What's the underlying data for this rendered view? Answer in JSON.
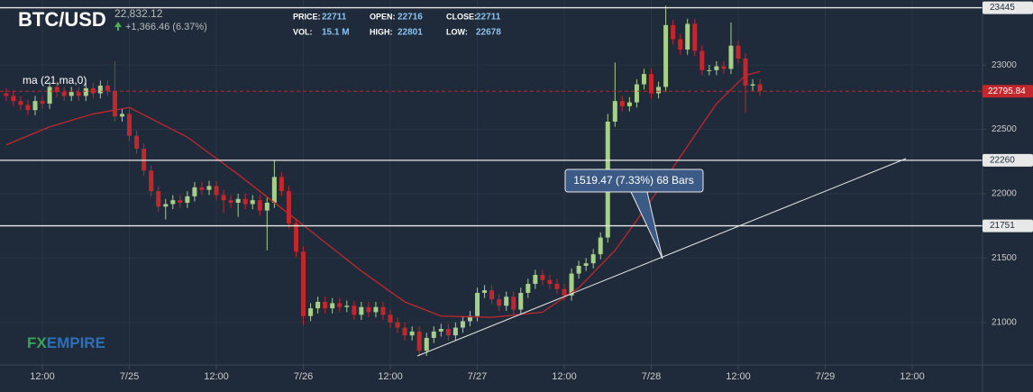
{
  "header": {
    "symbol": "BTC/USD",
    "price": "22,832.12",
    "change": "+1,366.46 (6.37%)",
    "stats": [
      {
        "label": "PRICE:",
        "value": "22711"
      },
      {
        "label": "OPEN:",
        "value": "22716"
      },
      {
        "label": "CLOSE:",
        "value": "22711"
      },
      {
        "label": "VOL:",
        "value": "15.1 M"
      },
      {
        "label": "HIGH:",
        "value": "22801"
      },
      {
        "label": "LOW:",
        "value": "22678"
      }
    ],
    "logo": {
      "fx": "FX",
      "empire": "EMPIRE"
    }
  },
  "chart_data": {
    "type": "candlestick",
    "up_color": "#a6cf8a",
    "down_color": "#c1272d",
    "grid": true,
    "annotation": "1519.47 (7.33%) 68 Bars",
    "xlim": [
      -5.85,
      129.7
    ],
    "ylim": [
      20670,
      23505
    ],
    "xticks": [
      {
        "value": 0,
        "label": "12:00"
      },
      {
        "value": 12,
        "label": "7/25"
      },
      {
        "value": 24,
        "label": "12:00"
      },
      {
        "value": 36,
        "label": "7/26"
      },
      {
        "value": 48,
        "label": "12:00"
      },
      {
        "value": 60,
        "label": "7/27"
      },
      {
        "value": 72,
        "label": "12:00"
      },
      {
        "value": 84,
        "label": "7/28"
      },
      {
        "value": 96,
        "label": "12:00"
      },
      {
        "value": 108,
        "label": "7/29"
      },
      {
        "value": 120,
        "label": "12:00"
      }
    ],
    "yticks": [
      21000,
      21500,
      22000,
      22500,
      23000
    ],
    "levels": [
      23445,
      22260,
      21751
    ],
    "level_color": "#e8e8e8",
    "last_price": 22795.84,
    "last_price_color": "#c1272d",
    "x": [
      -5,
      -4,
      -3,
      -2,
      -1,
      0,
      1,
      2,
      3,
      4,
      5,
      6,
      7,
      8,
      9,
      10,
      11,
      12,
      13,
      14,
      15,
      16,
      17,
      18,
      19,
      20,
      21,
      22,
      23,
      24,
      25,
      26,
      27,
      28,
      29,
      30,
      31,
      32,
      33,
      34,
      35,
      36,
      37,
      38,
      39,
      40,
      41,
      42,
      43,
      44,
      45,
      46,
      47,
      48,
      49,
      50,
      51,
      52,
      53,
      54,
      55,
      56,
      57,
      58,
      59,
      60,
      61,
      62,
      63,
      64,
      65,
      66,
      67,
      68,
      69,
      70,
      71,
      72,
      73,
      74,
      75,
      76,
      77,
      78,
      79,
      80,
      81,
      82,
      83,
      84,
      85,
      86,
      87,
      88,
      89,
      90,
      91,
      92,
      93,
      94,
      95,
      96,
      97,
      98,
      99
    ],
    "open": [
      22780,
      22760,
      22720,
      22690,
      22650,
      22720,
      22700,
      22830,
      22790,
      22760,
      22790,
      22760,
      22820,
      22780,
      22840,
      22800,
      22600,
      22620,
      22450,
      22350,
      22180,
      22020,
      21900,
      21920,
      21950,
      21930,
      21980,
      22050,
      22030,
      22060,
      21990,
      21950,
      21930,
      21960,
      21920,
      21950,
      21870,
      21930,
      22130,
      22020,
      21770,
      21550,
      21050,
      21110,
      21160,
      21110,
      21150,
      21120,
      21130,
      21060,
      21120,
      21080,
      21120,
      21060,
      21000,
      20960,
      20900,
      20930,
      20780,
      20880,
      20930,
      20950,
      20900,
      20960,
      21010,
      21050,
      21230,
      21250,
      21180,
      21130,
      21200,
      21100,
      21230,
      21300,
      21370,
      21330,
      21300,
      21260,
      21210,
      21380,
      21440,
      21460,
      21530,
      21660,
      22560,
      22720,
      22680,
      22710,
      22850,
      22930,
      22780,
      22830,
      23310,
      23200,
      23120,
      23320,
      23110,
      22960,
      22960,
      22990,
      22970,
      23150,
      23050,
      22840,
      22850
    ],
    "high": [
      22820,
      22800,
      22760,
      22730,
      22760,
      22760,
      22870,
      22870,
      22830,
      22830,
      22830,
      22860,
      22860,
      22880,
      22880,
      23030,
      22660,
      22660,
      22490,
      22390,
      22220,
      22060,
      21960,
      21990,
      21990,
      22020,
      22090,
      22090,
      22100,
      22100,
      22030,
      21990,
      22000,
      22000,
      21990,
      21990,
      21970,
      22260,
      22170,
      22060,
      21810,
      21590,
      21150,
      21200,
      21200,
      21190,
      21190,
      21170,
      21170,
      21160,
      21160,
      21160,
      21160,
      21100,
      21040,
      21000,
      20970,
      20970,
      20920,
      20970,
      20990,
      20990,
      21000,
      21050,
      21090,
      21270,
      21290,
      21290,
      21220,
      21240,
      21240,
      21270,
      21340,
      21410,
      21410,
      21370,
      21340,
      21300,
      21420,
      21480,
      21500,
      21570,
      21700,
      22620,
      23020,
      22760,
      22750,
      22890,
      22970,
      22970,
      22870,
      23460,
      23350,
      23240,
      23360,
      23360,
      23150,
      23000,
      23030,
      23030,
      23330,
      23190,
      23090,
      22890,
      22890
    ],
    "low": [
      22720,
      22680,
      22650,
      22610,
      22610,
      22660,
      22660,
      22750,
      22720,
      22720,
      22720,
      22720,
      22740,
      22740,
      22760,
      22560,
      22560,
      22410,
      22310,
      22140,
      21980,
      21860,
      21800,
      21880,
      21890,
      21890,
      21940,
      21990,
      21990,
      21950,
      21850,
      21890,
      21820,
      21880,
      21880,
      21830,
      21560,
      21890,
      21980,
      21730,
      21510,
      20980,
      21010,
      21070,
      21070,
      21070,
      21080,
      21080,
      21020,
      21020,
      21040,
      21040,
      21020,
      20960,
      20920,
      20860,
      20860,
      20740,
      20740,
      20840,
      20890,
      20860,
      20860,
      20920,
      20970,
      21010,
      21190,
      21140,
      21090,
      21090,
      21060,
      21060,
      21190,
      21260,
      21290,
      21260,
      21220,
      21170,
      21170,
      21340,
      21400,
      21420,
      21490,
      21620,
      22520,
      22640,
      22640,
      22670,
      22810,
      22740,
      22740,
      22790,
      23160,
      23080,
      23080,
      23070,
      22920,
      22920,
      22920,
      22930,
      22930,
      23010,
      22630,
      22800,
      22760
    ],
    "close": [
      22760,
      22720,
      22690,
      22650,
      22720,
      22700,
      22830,
      22790,
      22760,
      22790,
      22760,
      22820,
      22780,
      22840,
      22800,
      22600,
      22620,
      22450,
      22350,
      22180,
      22020,
      21900,
      21920,
      21950,
      21930,
      21980,
      22050,
      22030,
      22060,
      21990,
      21950,
      21930,
      21960,
      21920,
      21950,
      21870,
      21930,
      22130,
      22020,
      21770,
      21550,
      21050,
      21110,
      21160,
      21110,
      21150,
      21120,
      21130,
      21060,
      21120,
      21080,
      21120,
      21060,
      21000,
      20960,
      20900,
      20930,
      20780,
      20880,
      20930,
      20950,
      20900,
      20960,
      21010,
      21050,
      21230,
      21250,
      21180,
      21130,
      21200,
      21100,
      21230,
      21300,
      21370,
      21330,
      21300,
      21260,
      21210,
      21380,
      21440,
      21460,
      21530,
      21660,
      22560,
      22720,
      22680,
      22710,
      22850,
      22930,
      22780,
      22830,
      23310,
      23200,
      23120,
      23320,
      23110,
      22960,
      22960,
      22990,
      22970,
      23150,
      23050,
      22840,
      22850,
      22800
    ],
    "ma": {
      "label": "ma (21,ma,0)",
      "color": "#c1272d",
      "x": [
        -5,
        1,
        7,
        12,
        20,
        27,
        35,
        44,
        50,
        55,
        62,
        69,
        74,
        79,
        84,
        89,
        93,
        97,
        99
      ],
      "values": [
        22380,
        22520,
        22620,
        22670,
        22440,
        22150,
        21800,
        21400,
        21160,
        21050,
        21040,
        21080,
        21270,
        21560,
        21950,
        22370,
        22700,
        22920,
        22950
      ]
    }
  }
}
